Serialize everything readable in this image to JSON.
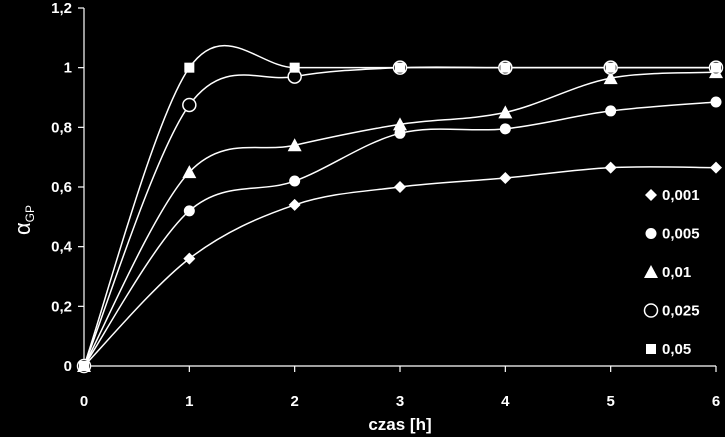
{
  "chart_data": {
    "type": "scatter",
    "title": "",
    "xlabel": "czas [h]",
    "ylabel": "α",
    "ylabel_sub": "GP",
    "xlim": [
      0,
      6
    ],
    "ylim": [
      0,
      1.2
    ],
    "x_ticks": [
      "0",
      "1",
      "2",
      "3",
      "4",
      "5",
      "6"
    ],
    "y_ticks": [
      "0",
      "0,2",
      "0,4",
      "0,6",
      "0,8",
      "1",
      "1,2"
    ],
    "grid": false,
    "legend_position": "right",
    "background": "#000000",
    "foreground": "#ffffff",
    "series": [
      {
        "name": "0,001",
        "marker": "diamond",
        "x": [
          0,
          1,
          2,
          3,
          4,
          5,
          6
        ],
        "y": [
          0,
          0.36,
          0.54,
          0.6,
          0.63,
          0.665,
          0.665
        ]
      },
      {
        "name": "0,005",
        "marker": "circle",
        "x": [
          0,
          1,
          2,
          3,
          4,
          5,
          6
        ],
        "y": [
          0,
          0.52,
          0.62,
          0.78,
          0.795,
          0.855,
          0.885
        ]
      },
      {
        "name": "0,01",
        "marker": "triangle",
        "x": [
          0,
          1,
          2,
          3,
          4,
          5,
          6
        ],
        "y": [
          0,
          0.65,
          0.74,
          0.81,
          0.85,
          0.965,
          0.985
        ]
      },
      {
        "name": "0,025",
        "marker": "open-circle",
        "x": [
          0,
          1,
          2,
          3,
          4,
          5,
          6
        ],
        "y": [
          0,
          0.875,
          0.97,
          1.0,
          1.0,
          1.0,
          1.0
        ]
      },
      {
        "name": "0,05",
        "marker": "square",
        "x": [
          0,
          1,
          2,
          3,
          4,
          5,
          6
        ],
        "y": [
          0,
          1.0,
          1.0,
          1.0,
          1.0,
          1.0,
          1.0
        ]
      }
    ]
  }
}
